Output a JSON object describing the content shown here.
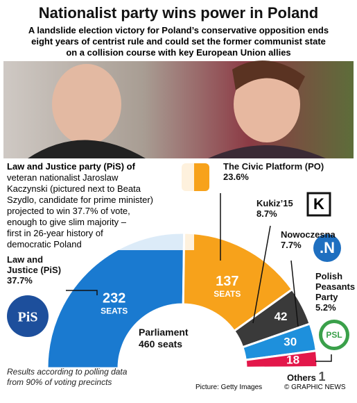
{
  "chart_data": {
    "type": "semicircle",
    "title": "Nationalist party wins power in Poland",
    "subtitle": [
      "A landslide election victory for Poland’s conservative opposition ends",
      "eight years of centrist rule and could set the former communist state",
      "on a collision course with key European Union allies"
    ],
    "intro": [
      "Law and Justice party (PiS) of",
      "veteran nationalist Jaroslaw",
      "Kaczynski (pictured next to Beata",
      "Szydlo, candidate for prime minister)",
      "projected to win 37.7% of vote,",
      "enough to give slim majority –",
      "first in 26-year history of",
      "democratic Poland"
    ],
    "categories": [
      "Law and Justice (PiS)",
      "The Civic Platform (PO)",
      "Kukiz’15",
      "Nowoczesna",
      "Polish Peasants Party",
      "Others"
    ],
    "values": [
      232,
      137,
      42,
      30,
      18,
      1
    ],
    "share_labels": [
      "37.7%",
      "23.6%",
      "8.7%",
      "7.7%",
      "5.2%",
      null
    ],
    "colors": [
      "#1a7ad0",
      "#f7a21b",
      "#3a3a3a",
      "#1e90dc",
      "#e3174a",
      "#9a9a9a"
    ],
    "seat_unit": "SEATS",
    "center_label": [
      "Parliament",
      "460 seats"
    ],
    "logos": [
      "PiS",
      "PSL",
      ".N",
      "K"
    ],
    "note": [
      "Results according to polling data",
      "from 90% of voting precincts"
    ],
    "credit": "Picture: Getty Images",
    "source": "© GRAPHIC NEWS"
  }
}
